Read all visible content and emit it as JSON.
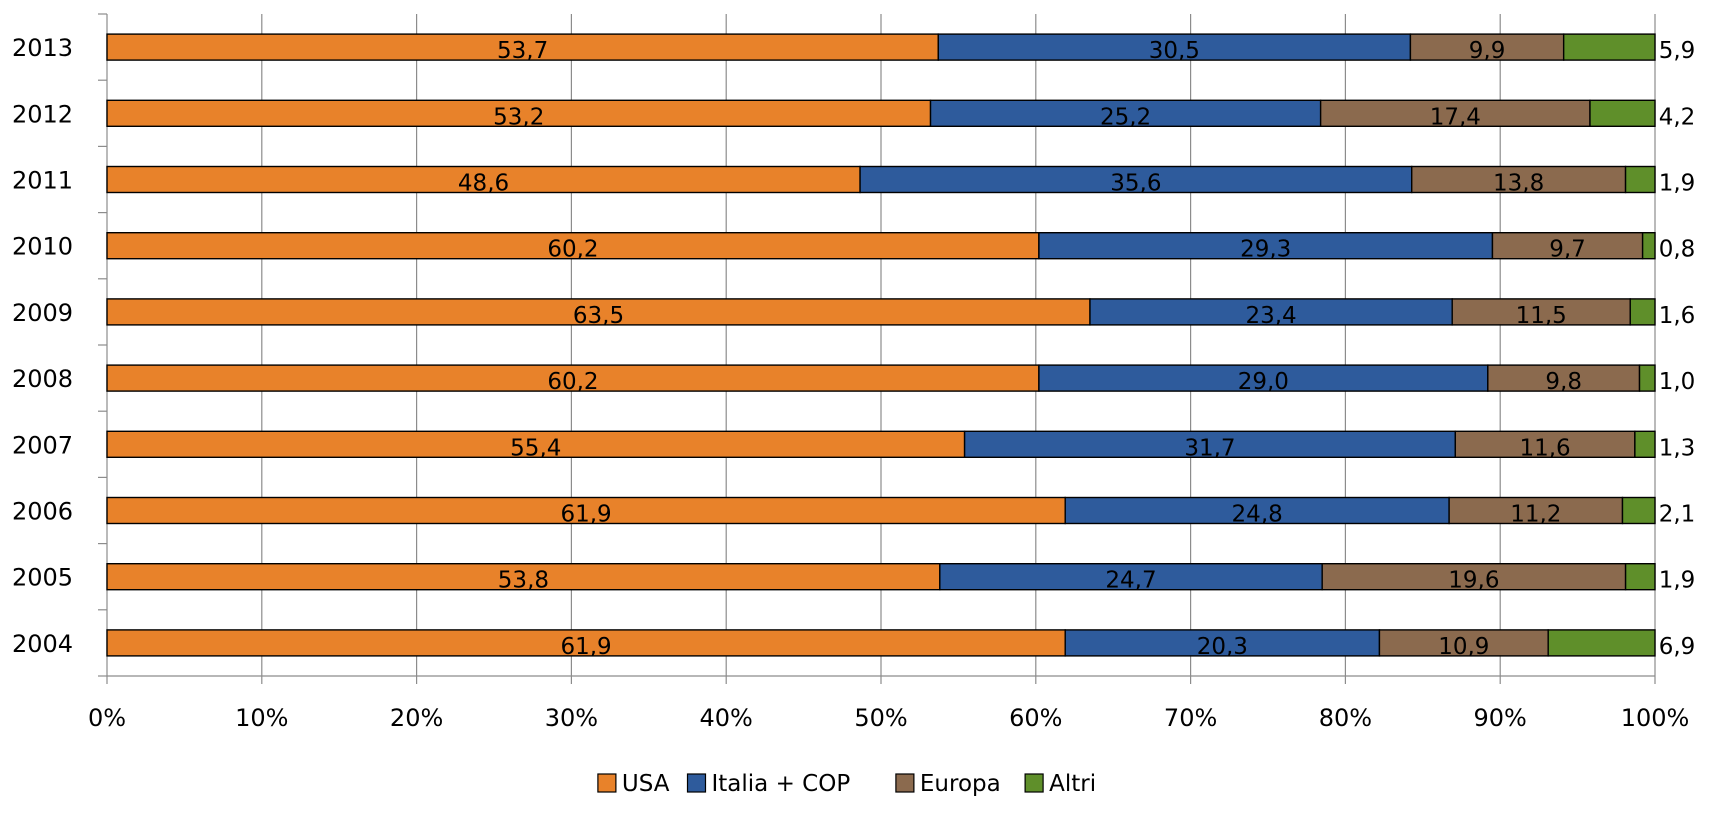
{
  "chart_data": {
    "type": "bar",
    "orientation": "horizontal",
    "stacked": "percent",
    "categories": [
      "2013",
      "2012",
      "2011",
      "2010",
      "2009",
      "2008",
      "2007",
      "2006",
      "2005",
      "2004"
    ],
    "series": [
      {
        "name": "USA",
        "color": "#E8822A",
        "values": [
          53.7,
          53.2,
          48.6,
          60.2,
          63.5,
          60.2,
          55.4,
          61.9,
          53.8,
          61.9
        ],
        "labels": [
          "53,7",
          "53,2",
          "48,6",
          "60,2",
          "63,5",
          "60,2",
          "55,4",
          "61,9",
          "53,8",
          "61,9"
        ]
      },
      {
        "name": "Italia + COP",
        "color": "#2E5B9C",
        "values": [
          30.5,
          25.2,
          35.6,
          29.3,
          23.4,
          29.0,
          31.7,
          24.8,
          24.7,
          20.3
        ],
        "labels": [
          "30,5",
          "25,2",
          "35,6",
          "29,3",
          "23,4",
          "29,0",
          "31,7",
          "24,8",
          "24,7",
          "20,3"
        ]
      },
      {
        "name": "Europa",
        "color": "#8B6A4E",
        "values": [
          9.9,
          17.4,
          13.8,
          9.7,
          11.5,
          9.8,
          11.6,
          11.2,
          19.6,
          10.9
        ],
        "labels": [
          "9,9",
          "17,4",
          "13,8",
          "9,7",
          "11,5",
          "9,8",
          "11,6",
          "11,2",
          "19,6",
          "10,9"
        ]
      },
      {
        "name": "Altri",
        "color": "#5F8F2A",
        "values": [
          5.9,
          4.2,
          1.9,
          0.8,
          1.6,
          1.0,
          1.3,
          2.1,
          1.9,
          6.9
        ],
        "labels": [
          "5,9",
          "4,2",
          "1,9",
          "0,8",
          "1,6",
          "1,0",
          "1,3",
          "2,1",
          "1,9",
          "6,9"
        ]
      }
    ],
    "x_ticks": [
      "0%",
      "10%",
      "20%",
      "30%",
      "40%",
      "50%",
      "60%",
      "70%",
      "80%",
      "90%",
      "100%"
    ],
    "xlim": [
      0,
      100
    ],
    "grid": true,
    "legend_position": "bottom"
  }
}
